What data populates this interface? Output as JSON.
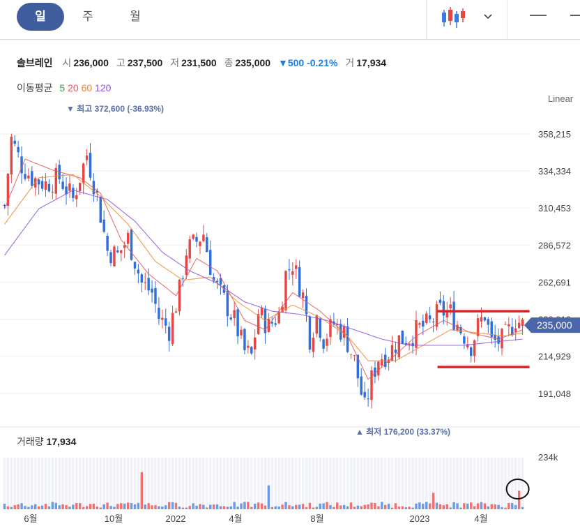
{
  "tabs": [
    {
      "label": "일",
      "active": true
    },
    {
      "label": "주",
      "active": false
    },
    {
      "label": "월",
      "active": false
    }
  ],
  "toolbar": {
    "chart_type_icon": "candlestick-icon",
    "dropdown_icon": "chevron-down-icon",
    "minimize_icon": "minus-icon"
  },
  "stock": {
    "name": "솔브레인",
    "open_label": "시",
    "open": "236,000",
    "high_label": "고",
    "high": "237,500",
    "low_label": "저",
    "low": "231,500",
    "close_label": "종",
    "close": "235,000",
    "change_arrow": "▼",
    "change": "500",
    "change_pct": "-0.21%",
    "volume_label": "거",
    "volume": "17,934"
  },
  "ma": {
    "label": "이동평균",
    "periods": [
      "5",
      "20",
      "60",
      "120"
    ],
    "colors": [
      "#2f9e44",
      "#e8575a",
      "#f08a2e",
      "#8b55d9"
    ]
  },
  "scale_mode": "Linear",
  "volume_panel": {
    "title": "거래량",
    "value": "17,934",
    "axis_label": "234k"
  },
  "colors": {
    "up": "#f27070",
    "down": "#3a7be0",
    "accent": "#3f5d9c",
    "annotation": "#e02020",
    "price_tag": "#4a66a8"
  },
  "chart_data": {
    "type": "candlestick",
    "x_labels": [
      "6월",
      "10월",
      "2022",
      "4월",
      "8월",
      "2023",
      "4월"
    ],
    "y_ticks": [
      358215,
      334334,
      310453,
      286572,
      262691,
      238810,
      214929,
      191048
    ],
    "ylim": [
      173000,
      372600
    ],
    "current_price": 235000,
    "current_price_label": "235,000",
    "high_marker": {
      "value": 372600,
      "label": "최고 372,600 (-36.93%)"
    },
    "low_marker": {
      "value": 176200,
      "label": "최저 176,200 (33.37%)"
    },
    "price_path": [
      [
        0,
        312000
      ],
      [
        2,
        355000
      ],
      [
        5,
        338000
      ],
      [
        8,
        330000
      ],
      [
        12,
        326000
      ],
      [
        16,
        330000
      ],
      [
        20,
        316000
      ],
      [
        24,
        345000
      ],
      [
        27,
        318000
      ],
      [
        30,
        283000
      ],
      [
        33,
        280000
      ],
      [
        36,
        291000
      ],
      [
        40,
        262000
      ],
      [
        43,
        256000
      ],
      [
        45,
        240000
      ],
      [
        48,
        232000
      ],
      [
        51,
        257000
      ],
      [
        53,
        283000
      ],
      [
        56,
        289000
      ],
      [
        58,
        294000
      ],
      [
        61,
        263000
      ],
      [
        64,
        251000
      ],
      [
        67,
        238000
      ],
      [
        70,
        218000
      ],
      [
        72,
        215000
      ],
      [
        74,
        243000
      ],
      [
        77,
        234000
      ],
      [
        80,
        242000
      ],
      [
        82,
        268000
      ],
      [
        84,
        275000
      ],
      [
        87,
        254000
      ],
      [
        89,
        227000
      ],
      [
        91,
        241000
      ],
      [
        93,
        226000
      ],
      [
        96,
        236000
      ],
      [
        99,
        230000
      ],
      [
        102,
        212000
      ],
      [
        105,
        181000
      ],
      [
        107,
        200000
      ],
      [
        109,
        214000
      ],
      [
        112,
        217000
      ],
      [
        115,
        226000
      ],
      [
        118,
        227000
      ],
      [
        121,
        233000
      ],
      [
        124,
        236000
      ],
      [
        127,
        244000
      ],
      [
        130,
        243000
      ],
      [
        133,
        232000
      ],
      [
        136,
        222000
      ],
      [
        138,
        234000
      ],
      [
        140,
        242000
      ],
      [
        142,
        224000
      ],
      [
        145,
        225000
      ],
      [
        147,
        231000
      ],
      [
        149,
        239000
      ],
      [
        151,
        235000
      ]
    ],
    "ma_lines": [
      {
        "name": "20",
        "points": [
          [
            0,
            310000
          ],
          [
            6,
            342000
          ],
          [
            14,
            335000
          ],
          [
            22,
            330000
          ],
          [
            28,
            320000
          ],
          [
            34,
            290000
          ],
          [
            42,
            268000
          ],
          [
            50,
            254000
          ],
          [
            56,
            278000
          ],
          [
            62,
            270000
          ],
          [
            70,
            238000
          ],
          [
            76,
            232000
          ],
          [
            84,
            256000
          ],
          [
            92,
            244000
          ],
          [
            100,
            228000
          ],
          [
            106,
            200000
          ],
          [
            112,
            212000
          ],
          [
            120,
            228000
          ],
          [
            128,
            238000
          ],
          [
            136,
            230000
          ],
          [
            144,
            226000
          ],
          [
            151,
            232000
          ]
        ]
      },
      {
        "name": "60",
        "points": [
          [
            0,
            300000
          ],
          [
            10,
            330000
          ],
          [
            20,
            332000
          ],
          [
            28,
            318000
          ],
          [
            36,
            300000
          ],
          [
            44,
            276000
          ],
          [
            52,
            264000
          ],
          [
            60,
            266000
          ],
          [
            68,
            250000
          ],
          [
            76,
            238000
          ],
          [
            84,
            248000
          ],
          [
            92,
            240000
          ],
          [
            100,
            228000
          ],
          [
            106,
            212000
          ],
          [
            114,
            212000
          ],
          [
            122,
            222000
          ],
          [
            130,
            232000
          ],
          [
            138,
            230000
          ],
          [
            146,
            228000
          ],
          [
            151,
            230000
          ]
        ]
      },
      {
        "name": "120",
        "points": [
          [
            0,
            280000
          ],
          [
            10,
            310000
          ],
          [
            20,
            322000
          ],
          [
            30,
            316000
          ],
          [
            38,
            302000
          ],
          [
            46,
            282000
          ],
          [
            54,
            270000
          ],
          [
            62,
            262000
          ],
          [
            70,
            250000
          ],
          [
            78,
            244000
          ],
          [
            86,
            242000
          ],
          [
            94,
            238000
          ],
          [
            102,
            232000
          ],
          [
            110,
            226000
          ],
          [
            118,
            222000
          ],
          [
            126,
            222000
          ],
          [
            134,
            222000
          ],
          [
            142,
            224000
          ],
          [
            151,
            226000
          ]
        ]
      }
    ],
    "grid": true,
    "annotations": [
      {
        "type": "horizontal-line",
        "value": 244000,
        "from": 125,
        "to": 151
      },
      {
        "type": "horizontal-line",
        "value": 208000,
        "from": 125,
        "to": 151
      }
    ],
    "volume": {
      "ymax": 300000,
      "spikes": [
        [
          40,
          140000
        ],
        [
          77,
          90000
        ],
        [
          125,
          62000
        ],
        [
          150,
          70000
        ]
      ],
      "circled_bar": 150
    }
  }
}
